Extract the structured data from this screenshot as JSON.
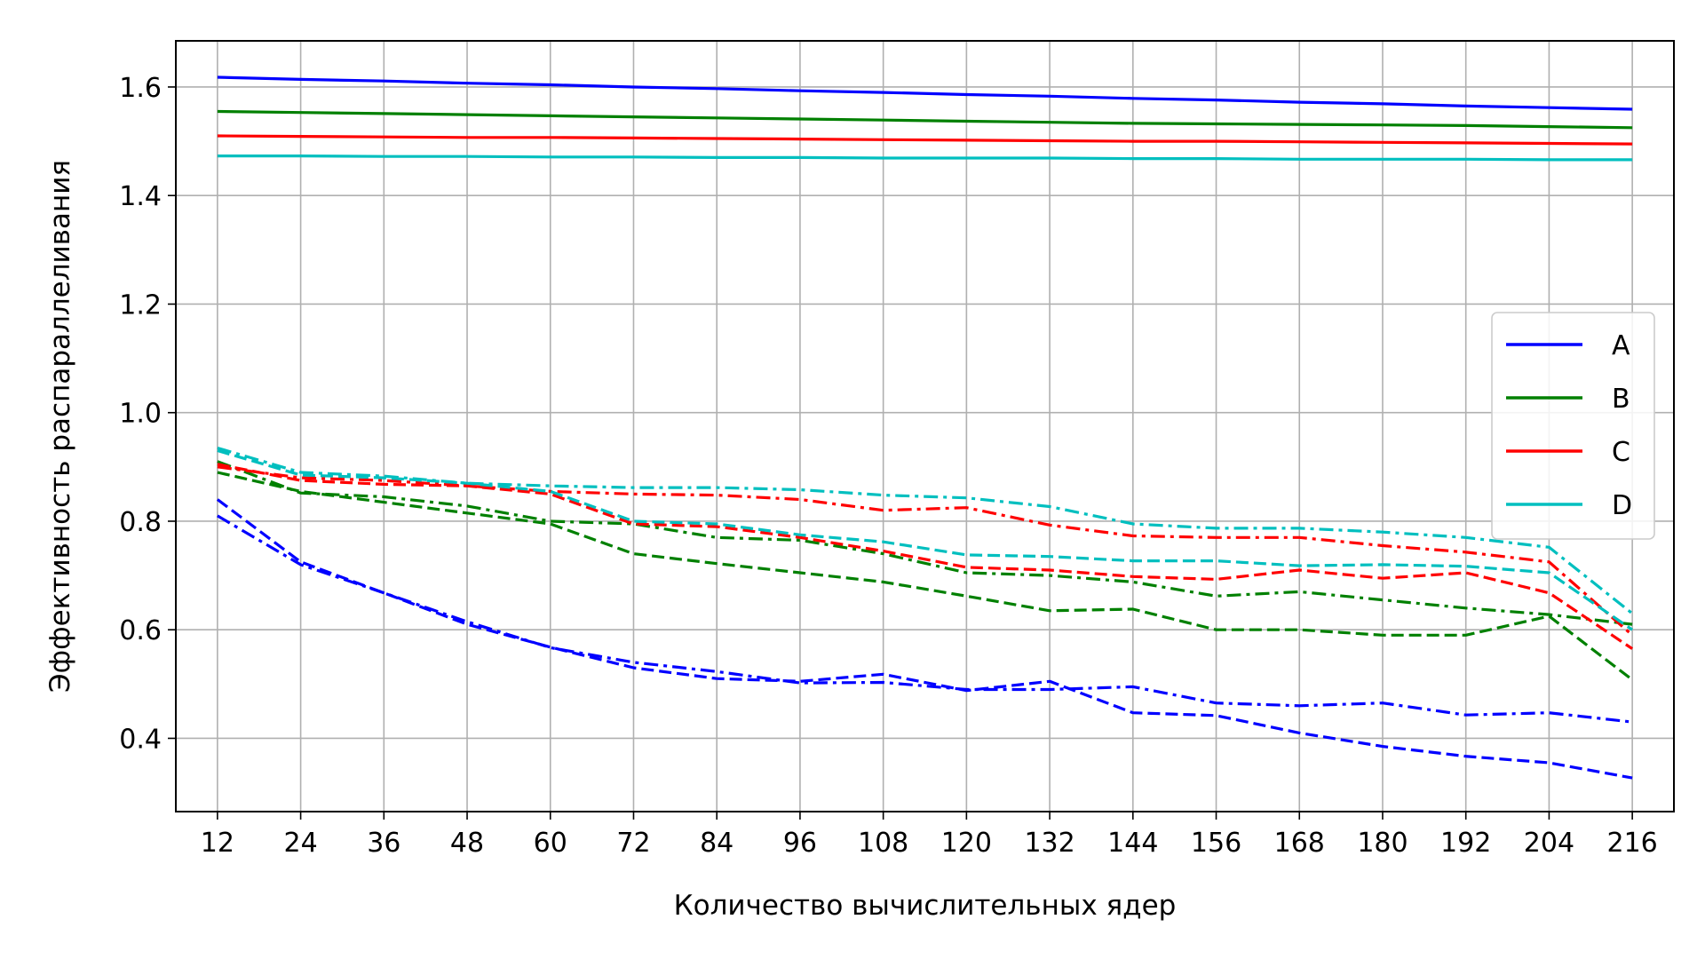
{
  "chart_data": {
    "type": "line",
    "title": "",
    "xlabel": "Количество вычислительных ядер",
    "ylabel": "Эффективность распараллеливания",
    "x": [
      12,
      24,
      36,
      48,
      60,
      72,
      84,
      96,
      108,
      120,
      132,
      144,
      156,
      168,
      180,
      192,
      204,
      216
    ],
    "xlim": [
      6,
      222
    ],
    "ylim": [
      0.265,
      1.685
    ],
    "yticks": [
      0.4,
      0.6,
      0.8,
      1.0,
      1.2,
      1.4,
      1.6
    ],
    "ytick_labels": [
      "0.4",
      "0.6",
      "0.8",
      "1.0",
      "1.2",
      "1.4",
      "1.6"
    ],
    "xtick_labels": [
      "12",
      "24",
      "36",
      "48",
      "60",
      "72",
      "84",
      "96",
      "108",
      "120",
      "132",
      "144",
      "156",
      "168",
      "180",
      "192",
      "204",
      "216"
    ],
    "grid": true,
    "legend_position": "center-right",
    "legend": [
      {
        "label": "A",
        "color": "#0000ff"
      },
      {
        "label": "B",
        "color": "#008000"
      },
      {
        "label": "C",
        "color": "#ff0000"
      },
      {
        "label": "D",
        "color": "#00bfbf"
      }
    ],
    "series": [
      {
        "group": "A",
        "style": "solid",
        "color": "#0000ff",
        "values": [
          1.618,
          1.614,
          1.611,
          1.607,
          1.604,
          1.6,
          1.597,
          1.593,
          1.59,
          1.586,
          1.583,
          1.579,
          1.576,
          1.572,
          1.569,
          1.565,
          1.562,
          1.559
        ]
      },
      {
        "group": "A",
        "style": "dashed",
        "color": "#0000ff",
        "values": [
          0.84,
          0.725,
          0.668,
          0.61,
          0.568,
          0.53,
          0.51,
          0.505,
          0.518,
          0.488,
          0.505,
          0.447,
          0.442,
          0.41,
          0.385,
          0.367,
          0.355,
          0.327
        ]
      },
      {
        "group": "A",
        "style": "dashdot",
        "color": "#0000ff",
        "values": [
          0.81,
          0.72,
          0.668,
          0.615,
          0.567,
          0.54,
          0.523,
          0.502,
          0.503,
          0.49,
          0.49,
          0.495,
          0.465,
          0.46,
          0.465,
          0.443,
          0.447,
          0.43
        ]
      },
      {
        "group": "B",
        "style": "solid",
        "color": "#008000",
        "values": [
          1.555,
          1.553,
          1.551,
          1.549,
          1.547,
          1.545,
          1.543,
          1.541,
          1.539,
          1.537,
          1.535,
          1.533,
          1.532,
          1.531,
          1.53,
          1.529,
          1.527,
          1.525
        ]
      },
      {
        "group": "B",
        "style": "dashed",
        "color": "#008000",
        "values": [
          0.89,
          0.855,
          0.835,
          0.815,
          0.795,
          0.74,
          0.722,
          0.705,
          0.688,
          0.662,
          0.635,
          0.638,
          0.6,
          0.6,
          0.59,
          0.59,
          0.625,
          0.508
        ]
      },
      {
        "group": "B",
        "style": "dashdot",
        "color": "#008000",
        "values": [
          0.91,
          0.852,
          0.845,
          0.828,
          0.8,
          0.795,
          0.77,
          0.765,
          0.74,
          0.705,
          0.7,
          0.688,
          0.662,
          0.67,
          0.655,
          0.64,
          0.628,
          0.61
        ]
      },
      {
        "group": "C",
        "style": "solid",
        "color": "#ff0000",
        "values": [
          1.51,
          1.509,
          1.508,
          1.507,
          1.507,
          1.506,
          1.505,
          1.504,
          1.503,
          1.502,
          1.501,
          1.5,
          1.5,
          1.499,
          1.498,
          1.497,
          1.496,
          1.495
        ]
      },
      {
        "group": "C",
        "style": "dashed",
        "color": "#ff0000",
        "values": [
          0.905,
          0.875,
          0.868,
          0.865,
          0.85,
          0.795,
          0.79,
          0.77,
          0.745,
          0.715,
          0.71,
          0.698,
          0.693,
          0.71,
          0.695,
          0.705,
          0.668,
          0.565
        ]
      },
      {
        "group": "C",
        "style": "dashdot",
        "color": "#ff0000",
        "values": [
          0.9,
          0.88,
          0.875,
          0.865,
          0.855,
          0.85,
          0.848,
          0.84,
          0.82,
          0.825,
          0.793,
          0.773,
          0.77,
          0.77,
          0.755,
          0.743,
          0.725,
          0.59
        ]
      },
      {
        "group": "D",
        "style": "solid",
        "color": "#00bfbf",
        "values": [
          1.473,
          1.473,
          1.472,
          1.472,
          1.471,
          1.471,
          1.47,
          1.47,
          1.469,
          1.469,
          1.469,
          1.468,
          1.468,
          1.467,
          1.467,
          1.467,
          1.466,
          1.466
        ]
      },
      {
        "group": "D",
        "style": "dashed",
        "color": "#00bfbf",
        "values": [
          0.93,
          0.885,
          0.88,
          0.87,
          0.855,
          0.8,
          0.795,
          0.775,
          0.762,
          0.738,
          0.735,
          0.727,
          0.727,
          0.718,
          0.72,
          0.717,
          0.705,
          0.6
        ]
      },
      {
        "group": "D",
        "style": "dashdot",
        "color": "#00bfbf",
        "values": [
          0.935,
          0.89,
          0.883,
          0.87,
          0.865,
          0.862,
          0.862,
          0.858,
          0.848,
          0.843,
          0.827,
          0.795,
          0.787,
          0.787,
          0.78,
          0.77,
          0.752,
          0.63
        ]
      }
    ]
  }
}
